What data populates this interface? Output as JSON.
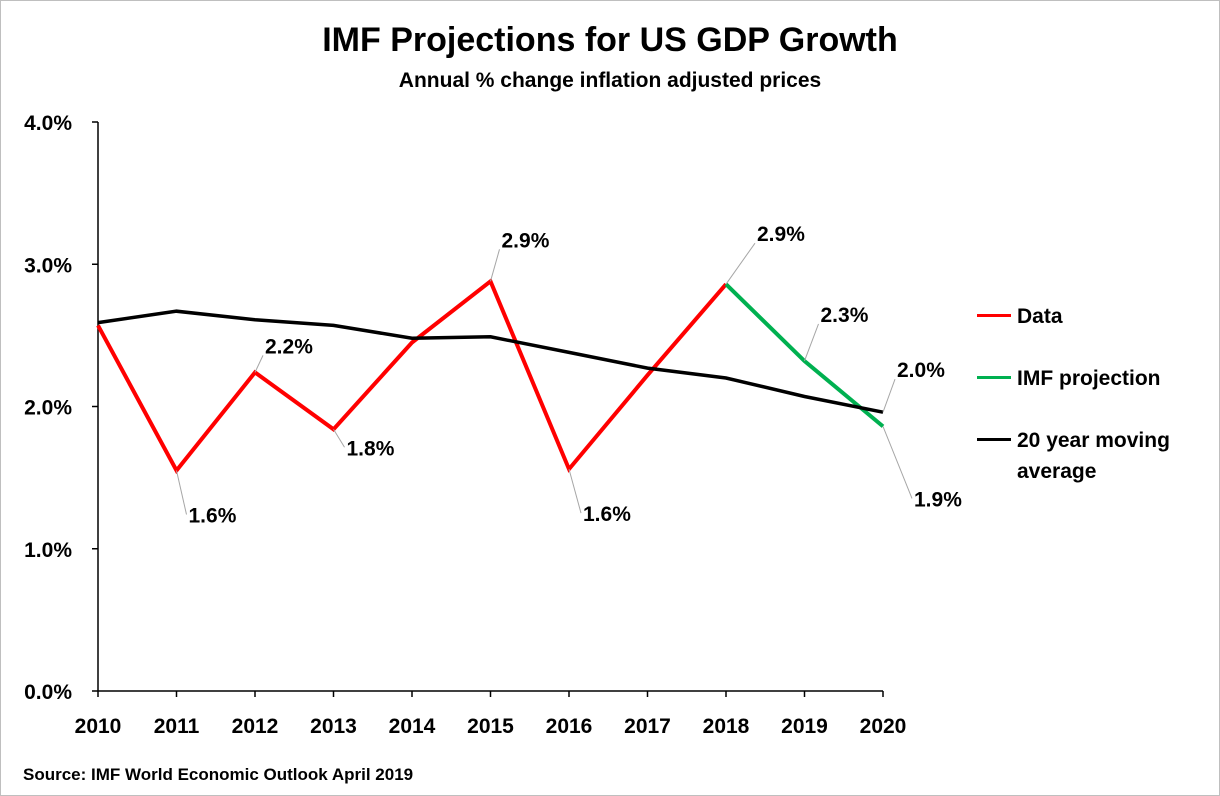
{
  "chart_data": {
    "type": "line",
    "title": "IMF Projections for US GDP Growth",
    "subtitle": "Annual % change inflation adjusted prices",
    "x": [
      2010,
      2011,
      2012,
      2013,
      2014,
      2015,
      2016,
      2017,
      2018,
      2019,
      2020
    ],
    "x_tick_labels": [
      "2010",
      "2011",
      "2012",
      "2013",
      "2014",
      "2015",
      "2016",
      "2017",
      "2018",
      "2019",
      "2020"
    ],
    "ylim": [
      0,
      4
    ],
    "y_ticks": [
      0,
      1,
      2,
      3,
      4
    ],
    "y_tick_labels": [
      "0.0%",
      "1.0%",
      "2.0%",
      "3.0%",
      "4.0%"
    ],
    "grid": false,
    "legend_position": "right",
    "series": [
      {
        "name": "Data",
        "color": "#ff0000",
        "x": [
          2010,
          2011,
          2012,
          2013,
          2014,
          2015,
          2016,
          2017,
          2018
        ],
        "values": [
          2.57,
          1.55,
          2.24,
          1.84,
          2.45,
          2.88,
          1.56,
          2.22,
          2.86
        ]
      },
      {
        "name": "IMF projection",
        "color": "#00b050",
        "x": [
          2018,
          2019,
          2020
        ],
        "values": [
          2.86,
          2.32,
          1.86
        ]
      },
      {
        "name": "20 year moving average",
        "color": "#000000",
        "x": [
          2010,
          2011,
          2012,
          2013,
          2014,
          2015,
          2016,
          2017,
          2018,
          2019,
          2020
        ],
        "values": [
          2.59,
          2.67,
          2.61,
          2.57,
          2.48,
          2.49,
          2.38,
          2.27,
          2.2,
          2.07,
          1.96
        ]
      }
    ],
    "annotations": [
      {
        "x": 2011,
        "y": 1.55,
        "text": "1.6%",
        "dx": 12,
        "dy": 52
      },
      {
        "x": 2012,
        "y": 2.24,
        "text": "2.2%",
        "dx": 10,
        "dy": -19
      },
      {
        "x": 2013,
        "y": 1.84,
        "text": "1.8%",
        "dx": 13,
        "dy": 26
      },
      {
        "x": 2015,
        "y": 2.88,
        "text": "2.9%",
        "dx": 11,
        "dy": -34
      },
      {
        "x": 2016,
        "y": 1.56,
        "text": "1.6%",
        "dx": 14,
        "dy": 52
      },
      {
        "x": 2018,
        "y": 2.86,
        "text": "2.9%",
        "dx": 31,
        "dy": -43
      },
      {
        "x": 2019,
        "y": 2.32,
        "text": "2.3%",
        "dx": 16,
        "dy": -39
      },
      {
        "x": 2020,
        "y": 1.96,
        "text": "2.0%",
        "dx": 14,
        "dy": -35
      },
      {
        "x": 2020,
        "y": 1.86,
        "text": "1.9%",
        "dx": 31,
        "dy": 80
      }
    ],
    "source": "Source: IMF World Economic Outlook April 2019"
  }
}
